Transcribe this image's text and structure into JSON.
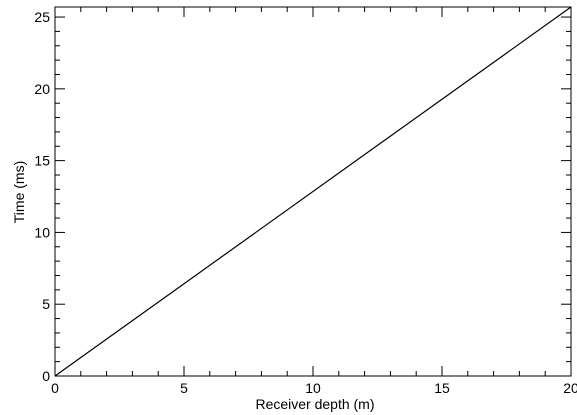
{
  "chart_data": {
    "type": "line",
    "title": "",
    "xlabel": "Receiver depth (m)",
    "ylabel": "Time (ms)",
    "xlim": [
      0,
      20
    ],
    "ylim": [
      0,
      25.7
    ],
    "xticks": [
      0,
      5,
      10,
      15,
      20
    ],
    "yticks": [
      0,
      5,
      10,
      15,
      20,
      25
    ],
    "grid": false,
    "legend": "none",
    "series": [
      {
        "x": [
          0,
          20
        ],
        "y": [
          0,
          25.7
        ],
        "color": "#000000"
      }
    ]
  }
}
